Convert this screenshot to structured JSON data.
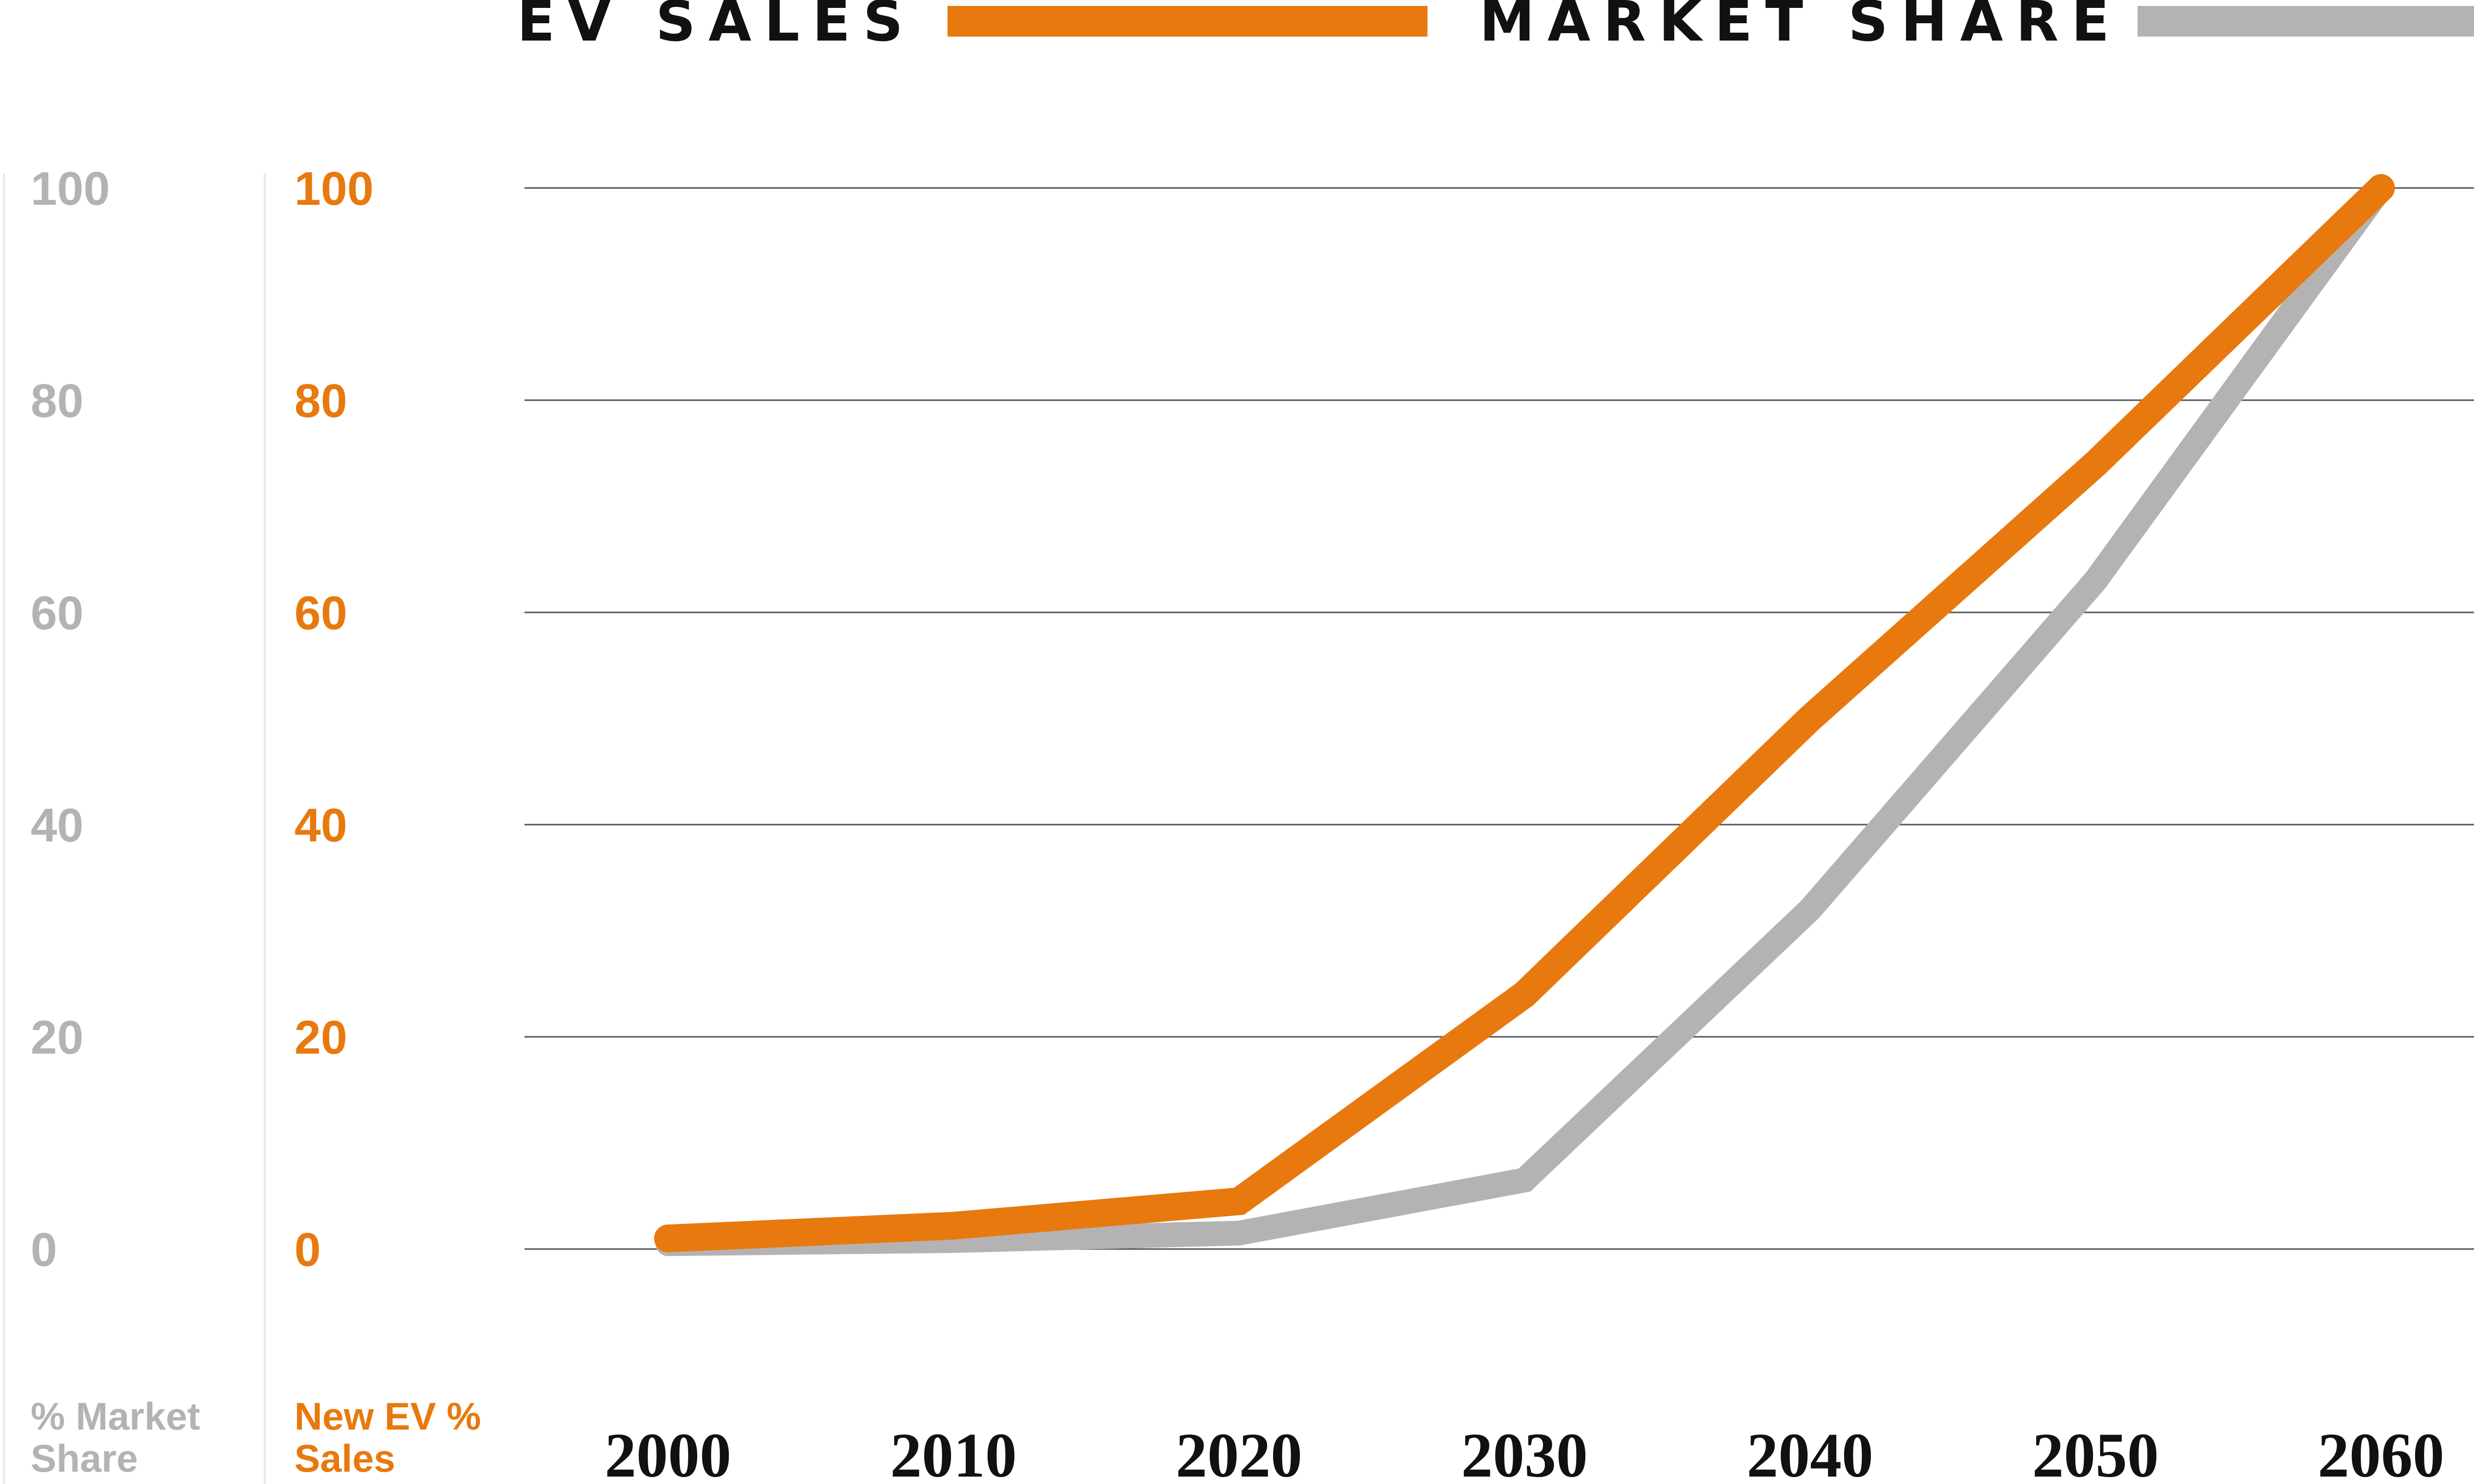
{
  "chart_data": {
    "type": "line",
    "legend_position": "top",
    "x": [
      2000,
      2010,
      2020,
      2030,
      2040,
      2050,
      2060
    ],
    "series": [
      {
        "name": "EV SALES",
        "axis": "right",
        "color": "#E8790E",
        "values": [
          1,
          2.2,
          4.5,
          24,
          50,
          74,
          100
        ]
      },
      {
        "name": "MARKET SHARE",
        "axis": "left",
        "color": "#B5B2B3",
        "values": [
          0.5,
          0.8,
          1.5,
          6.5,
          32,
          63,
          100
        ]
      }
    ],
    "y_left": {
      "title_line1": "% Market",
      "title_line2": "Share",
      "ticks": [
        "100",
        "80",
        "60",
        "40",
        "20",
        "0"
      ],
      "ylim": [
        0,
        100
      ],
      "color": "#B5B2B3"
    },
    "y_right": {
      "title_line1": "New EV %",
      "title_line2": "Sales",
      "ticks": [
        "100",
        "80",
        "60",
        "40",
        "20",
        "0"
      ],
      "ylim": [
        0,
        100
      ],
      "color": "#E8790E"
    },
    "x_ticks": [
      "2000",
      "2010",
      "2020",
      "2030",
      "2040",
      "2050",
      "2060"
    ],
    "grid": true,
    "gridline_color": "#555555"
  }
}
